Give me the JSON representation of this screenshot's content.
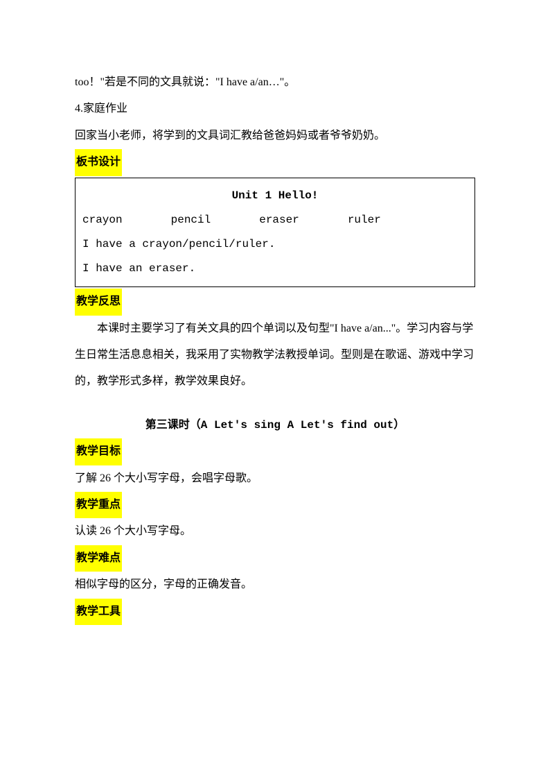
{
  "line1": "too！\"若是不同的文具就说：\"I have a/an…\"。",
  "line2": "4.家庭作业",
  "line3": "回家当小老师，将学到的文具词汇教给爸爸妈妈或者爷爷奶奶。",
  "heading_board": "板书设计",
  "box": {
    "title": "Unit 1  Hello!",
    "word1": "crayon",
    "word2": "pencil",
    "word3": "eraser",
    "word4": "ruler",
    "sentence1": "I have a crayon/pencil/ruler.",
    "sentence2": "I have an eraser."
  },
  "heading_reflection": "教学反思",
  "reflection_p1": "本课时主要学习了有关文具的四个单词以及句型\"I have a/an...\"。学习内容与学生日常生活息息相关，我采用了实物教学法教授单词。型则是在歌谣、游戏中学习的，教学形式多样，教学效果良好。",
  "lesson3_title": "第三课时（A Let's sing  A Let's find out）",
  "heading_goal": "教学目标",
  "goal_text": "了解 26 个大小写字母，会唱字母歌。",
  "heading_keypoint": "教学重点",
  "keypoint_text": "认读 26 个大小写字母。",
  "heading_difficulty": "教学难点",
  "difficulty_text": "相似字母的区分，字母的正确发音。",
  "heading_tools": "教学工具"
}
